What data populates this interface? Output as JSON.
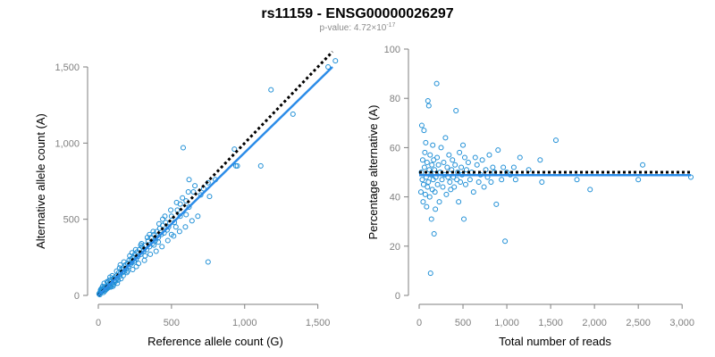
{
  "header": {
    "title": "rs11159 - ENSG00000026297",
    "pvalue_prefix": "p-value: 4.72×10",
    "pvalue_exponent": "-17"
  },
  "colors": {
    "points": "#1f8fd6",
    "fit_line": "#2b8ce8",
    "reference_line": "#000000",
    "axis": "#7f7f7f"
  },
  "chart_data": [
    {
      "type": "scatter",
      "title": "",
      "xlabel": "Reference allele count (G)",
      "ylabel": "Alternative allele count (A)",
      "xlim": [
        0,
        1600
      ],
      "ylim": [
        0,
        1500
      ],
      "x_ticks": [
        0,
        500,
        1000,
        1500
      ],
      "x_tick_labels": [
        "0",
        "500",
        "1,000",
        "1,500"
      ],
      "y_ticks": [
        0,
        500,
        1000,
        1500
      ],
      "y_tick_labels": [
        "0",
        "500",
        "1,000",
        "1,500"
      ],
      "grid": false,
      "points": [
        [
          5,
          10
        ],
        [
          8,
          15
        ],
        [
          12,
          20
        ],
        [
          15,
          18
        ],
        [
          20,
          25
        ],
        [
          25,
          30
        ],
        [
          10,
          5
        ],
        [
          18,
          40
        ],
        [
          22,
          35
        ],
        [
          30,
          28
        ],
        [
          35,
          45
        ],
        [
          40,
          38
        ],
        [
          45,
          50
        ],
        [
          50,
          42
        ],
        [
          55,
          60
        ],
        [
          60,
          55
        ],
        [
          65,
          48
        ],
        [
          70,
          70
        ],
        [
          75,
          65
        ],
        [
          80,
          60
        ],
        [
          85,
          90
        ],
        [
          90,
          80
        ],
        [
          95,
          75
        ],
        [
          100,
          110
        ],
        [
          110,
          95
        ],
        [
          115,
          120
        ],
        [
          120,
          100
        ],
        [
          125,
          130
        ],
        [
          130,
          115
        ],
        [
          140,
          150
        ],
        [
          145,
          125
        ],
        [
          150,
          140
        ],
        [
          160,
          170
        ],
        [
          165,
          150
        ],
        [
          170,
          180
        ],
        [
          180,
          160
        ],
        [
          185,
          200
        ],
        [
          190,
          175
        ],
        [
          200,
          210
        ],
        [
          205,
          190
        ],
        [
          210,
          230
        ],
        [
          220,
          205
        ],
        [
          225,
          240
        ],
        [
          230,
          215
        ],
        [
          240,
          250
        ],
        [
          245,
          225
        ],
        [
          250,
          270
        ],
        [
          260,
          240
        ],
        [
          265,
          285
        ],
        [
          270,
          255
        ],
        [
          280,
          300
        ],
        [
          290,
          270
        ],
        [
          300,
          320
        ],
        [
          310,
          290
        ],
        [
          320,
          330
        ],
        [
          330,
          300
        ],
        [
          340,
          360
        ],
        [
          350,
          320
        ],
        [
          360,
          380
        ],
        [
          370,
          340
        ],
        [
          380,
          400
        ],
        [
          390,
          360
        ],
        [
          400,
          420
        ],
        [
          410,
          380
        ],
        [
          420,
          440
        ],
        [
          430,
          400
        ],
        [
          440,
          460
        ],
        [
          450,
          410
        ],
        [
          460,
          480
        ],
        [
          480,
          450
        ],
        [
          500,
          520
        ],
        [
          520,
          480
        ],
        [
          540,
          560
        ],
        [
          560,
          520
        ],
        [
          600,
          620
        ],
        [
          620,
          580
        ],
        [
          650,
          680
        ],
        [
          700,
          660
        ],
        [
          750,
          740
        ],
        [
          800,
          760
        ],
        [
          60,
          90
        ],
        [
          80,
          120
        ],
        [
          100,
          60
        ],
        [
          130,
          80
        ],
        [
          150,
          200
        ],
        [
          170,
          130
        ],
        [
          200,
          160
        ],
        [
          230,
          280
        ],
        [
          260,
          190
        ],
        [
          290,
          330
        ],
        [
          320,
          260
        ],
        [
          350,
          400
        ],
        [
          380,
          330
        ],
        [
          410,
          350
        ],
        [
          440,
          500
        ],
        [
          470,
          430
        ],
        [
          500,
          400
        ],
        [
          530,
          450
        ],
        [
          560,
          600
        ],
        [
          600,
          530
        ],
        [
          580,
          970
        ],
        [
          620,
          760
        ],
        [
          750,
          220
        ],
        [
          760,
          650
        ],
        [
          930,
          960
        ],
        [
          940,
          850
        ],
        [
          950,
          850
        ],
        [
          1110,
          850
        ],
        [
          1180,
          1350
        ],
        [
          1330,
          1190
        ],
        [
          1570,
          1500
        ],
        [
          1620,
          1540
        ],
        [
          40,
          80
        ],
        [
          30,
          60
        ],
        [
          25,
          50
        ],
        [
          15,
          35
        ],
        [
          35,
          20
        ],
        [
          45,
          30
        ],
        [
          55,
          40
        ],
        [
          65,
          85
        ],
        [
          75,
          100
        ],
        [
          85,
          55
        ],
        [
          95,
          130
        ],
        [
          105,
          70
        ],
        [
          115,
          90
        ],
        [
          125,
          160
        ],
        [
          135,
          100
        ],
        [
          145,
          180
        ],
        [
          155,
          110
        ],
        [
          175,
          220
        ],
        [
          195,
          150
        ],
        [
          215,
          260
        ],
        [
          235,
          170
        ],
        [
          255,
          300
        ],
        [
          275,
          210
        ],
        [
          295,
          340
        ],
        [
          315,
          230
        ],
        [
          335,
          380
        ],
        [
          355,
          270
        ],
        [
          375,
          420
        ],
        [
          395,
          290
        ],
        [
          415,
          470
        ],
        [
          435,
          320
        ],
        [
          455,
          520
        ],
        [
          475,
          360
        ],
        [
          495,
          560
        ],
        [
          515,
          390
        ],
        [
          535,
          610
        ],
        [
          555,
          420
        ],
        [
          575,
          640
        ],
        [
          595,
          450
        ],
        [
          615,
          680
        ],
        [
          640,
          490
        ],
        [
          660,
          720
        ],
        [
          680,
          520
        ],
        [
          720,
          700
        ]
      ],
      "fit_line": [
        [
          0,
          0
        ],
        [
          1600,
          1500
        ]
      ],
      "reference_line": [
        [
          0,
          0
        ],
        [
          1600,
          1600
        ]
      ]
    },
    {
      "type": "scatter",
      "title": "",
      "xlabel": "Total number of reads",
      "ylabel": "Percentage alternative (A)",
      "xlim": [
        0,
        3100
      ],
      "ylim": [
        0,
        100
      ],
      "x_ticks": [
        0,
        500,
        1000,
        1500,
        2000,
        2500,
        3000
      ],
      "x_tick_labels": [
        "0",
        "500",
        "1,000",
        "1,500",
        "2,000",
        "2,500",
        "3,000"
      ],
      "y_ticks": [
        0,
        20,
        40,
        60,
        80,
        100
      ],
      "y_tick_labels": [
        "0",
        "20",
        "40",
        "60",
        "80",
        "100"
      ],
      "grid": false,
      "points": [
        [
          20,
          42
        ],
        [
          25,
          50
        ],
        [
          30,
          69
        ],
        [
          35,
          47
        ],
        [
          40,
          55
        ],
        [
          45,
          38
        ],
        [
          50,
          45
        ],
        [
          55,
          67
        ],
        [
          60,
          52
        ],
        [
          65,
          58
        ],
        [
          70,
          41
        ],
        [
          75,
          62
        ],
        [
          80,
          48
        ],
        [
          85,
          36
        ],
        [
          90,
          54
        ],
        [
          95,
          44
        ],
        [
          100,
          79
        ],
        [
          105,
          46
        ],
        [
          110,
          77
        ],
        [
          115,
          51
        ],
        [
          120,
          40
        ],
        [
          125,
          57
        ],
        [
          130,
          9
        ],
        [
          135,
          49
        ],
        [
          140,
          31
        ],
        [
          145,
          53
        ],
        [
          150,
          43
        ],
        [
          155,
          61
        ],
        [
          160,
          47
        ],
        [
          165,
          55
        ],
        [
          170,
          25
        ],
        [
          175,
          51
        ],
        [
          180,
          42
        ],
        [
          185,
          35
        ],
        [
          190,
          48
        ],
        [
          200,
          86
        ],
        [
          205,
          56
        ],
        [
          210,
          45
        ],
        [
          220,
          53
        ],
        [
          230,
          38
        ],
        [
          240,
          50
        ],
        [
          250,
          60
        ],
        [
          260,
          47
        ],
        [
          270,
          44
        ],
        [
          280,
          54
        ],
        [
          290,
          49
        ],
        [
          300,
          64
        ],
        [
          310,
          41
        ],
        [
          320,
          52
        ],
        [
          330,
          48
        ],
        [
          340,
          57
        ],
        [
          350,
          46
        ],
        [
          360,
          43
        ],
        [
          370,
          51
        ],
        [
          380,
          55
        ],
        [
          390,
          48
        ],
        [
          400,
          44
        ],
        [
          410,
          53
        ],
        [
          420,
          75
        ],
        [
          430,
          47
        ],
        [
          440,
          50
        ],
        [
          450,
          38
        ],
        [
          460,
          58
        ],
        [
          470,
          46
        ],
        [
          480,
          52
        ],
        [
          490,
          49
        ],
        [
          500,
          61
        ],
        [
          510,
          31
        ],
        [
          520,
          56
        ],
        [
          530,
          45
        ],
        [
          540,
          51
        ],
        [
          560,
          54
        ],
        [
          580,
          47
        ],
        [
          600,
          50
        ],
        [
          620,
          42
        ],
        [
          640,
          56
        ],
        [
          660,
          53
        ],
        [
          680,
          46
        ],
        [
          700,
          49
        ],
        [
          720,
          55
        ],
        [
          740,
          44
        ],
        [
          760,
          51
        ],
        [
          780,
          48
        ],
        [
          800,
          57
        ],
        [
          820,
          46
        ],
        [
          840,
          52
        ],
        [
          860,
          50
        ],
        [
          880,
          37
        ],
        [
          900,
          59
        ],
        [
          940,
          47
        ],
        [
          960,
          52
        ],
        [
          980,
          22
        ],
        [
          1000,
          50
        ],
        [
          1040,
          49
        ],
        [
          1080,
          52
        ],
        [
          1100,
          47
        ],
        [
          1150,
          56
        ],
        [
          1250,
          51
        ],
        [
          1380,
          55
        ],
        [
          1400,
          46
        ],
        [
          1560,
          63
        ],
        [
          1800,
          47
        ],
        [
          1950,
          43
        ],
        [
          2500,
          47
        ],
        [
          2550,
          53
        ],
        [
          3100,
          48
        ]
      ],
      "fit_line": [
        [
          0,
          48.8
        ],
        [
          3100,
          48.8
        ]
      ],
      "reference_line": [
        [
          0,
          50
        ],
        [
          3100,
          50
        ]
      ]
    }
  ]
}
